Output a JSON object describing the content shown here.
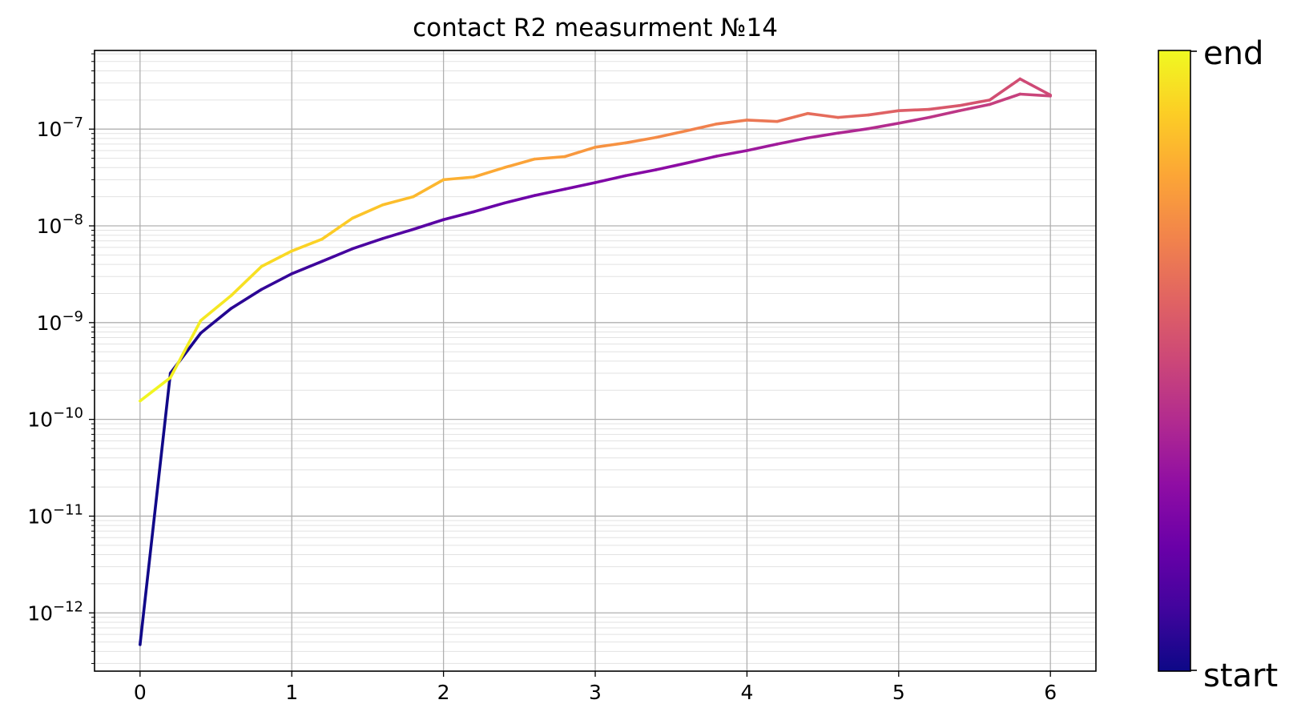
{
  "chart_data": {
    "type": "line",
    "title": "contact R2 measurment №14",
    "xlabel": "",
    "ylabel": "",
    "x_ticks": [
      "0",
      "1",
      "2",
      "3",
      "4",
      "5",
      "6"
    ],
    "xlim": [
      -0.3,
      6.3
    ],
    "y_scale": "log",
    "ylim": [
      2.5e-13,
      6.5e-07
    ],
    "y_ticks": [
      {
        "base": "10",
        "exp": "−12",
        "value": 1e-12
      },
      {
        "base": "10",
        "exp": "−11",
        "value": 1e-11
      },
      {
        "base": "10",
        "exp": "−10",
        "value": 1e-10
      },
      {
        "base": "10",
        "exp": "−9",
        "value": 1e-09
      },
      {
        "base": "10",
        "exp": "−8",
        "value": 1e-08
      },
      {
        "base": "10",
        "exp": "−7",
        "value": 1e-07
      }
    ],
    "grid": true,
    "colormap": "plasma",
    "colorbar": {
      "top_label": "end",
      "bottom_label": "start"
    },
    "series": [
      {
        "x": [
          0,
          0.2,
          0.4,
          0.6,
          0.8,
          1.0,
          1.2,
          1.4,
          1.6,
          1.8,
          2.0,
          2.2,
          2.4,
          2.6,
          2.8,
          3.0,
          3.2,
          3.4,
          3.6,
          3.8,
          4.0,
          4.2,
          4.4,
          4.6,
          4.8,
          5.0,
          5.2,
          5.4,
          5.6,
          5.8,
          6.0
        ],
        "y": [
          4.7e-13,
          3e-10,
          7.8e-10,
          1.4e-09,
          2.2e-09,
          3.2e-09,
          4.3e-09,
          5.8e-09,
          7.4e-09,
          9.2e-09,
          1.16e-08,
          1.4e-08,
          1.72e-08,
          2.06e-08,
          2.4e-08,
          2.8e-08,
          3.3e-08,
          3.8e-08,
          4.45e-08,
          5.25e-08,
          6e-08,
          7e-08,
          8.1e-08,
          9.1e-08,
          1.01e-07,
          1.15e-07,
          1.32e-07,
          1.55e-07,
          1.8e-07,
          2.3e-07,
          2.2e-07
        ],
        "colormap_range": [
          0.0,
          0.5
        ]
      },
      {
        "x": [
          6.0,
          5.8,
          5.6,
          5.4,
          5.2,
          5.0,
          4.8,
          4.6,
          4.4,
          4.2,
          4.0,
          3.8,
          3.6,
          3.4,
          3.2,
          3.0,
          2.8,
          2.6,
          2.4,
          2.2,
          2.0,
          1.8,
          1.6,
          1.4,
          1.2,
          1.0,
          0.8,
          0.6,
          0.4,
          0.2,
          0
        ],
        "y": [
          2.25e-07,
          3.3e-07,
          2e-07,
          1.75e-07,
          1.6e-07,
          1.55e-07,
          1.4e-07,
          1.32e-07,
          1.45e-07,
          1.2e-07,
          1.24e-07,
          1.13e-07,
          9.6e-08,
          8.2e-08,
          7.2e-08,
          6.5e-08,
          5.2e-08,
          4.9e-08,
          4e-08,
          3.2e-08,
          3e-08,
          2e-08,
          1.65e-08,
          1.2e-08,
          7.3e-09,
          5.5e-09,
          3.8e-09,
          1.9e-09,
          1.05e-09,
          2.7e-10,
          1.55e-10
        ],
        "colormap_range": [
          0.5,
          1.0
        ]
      }
    ]
  }
}
